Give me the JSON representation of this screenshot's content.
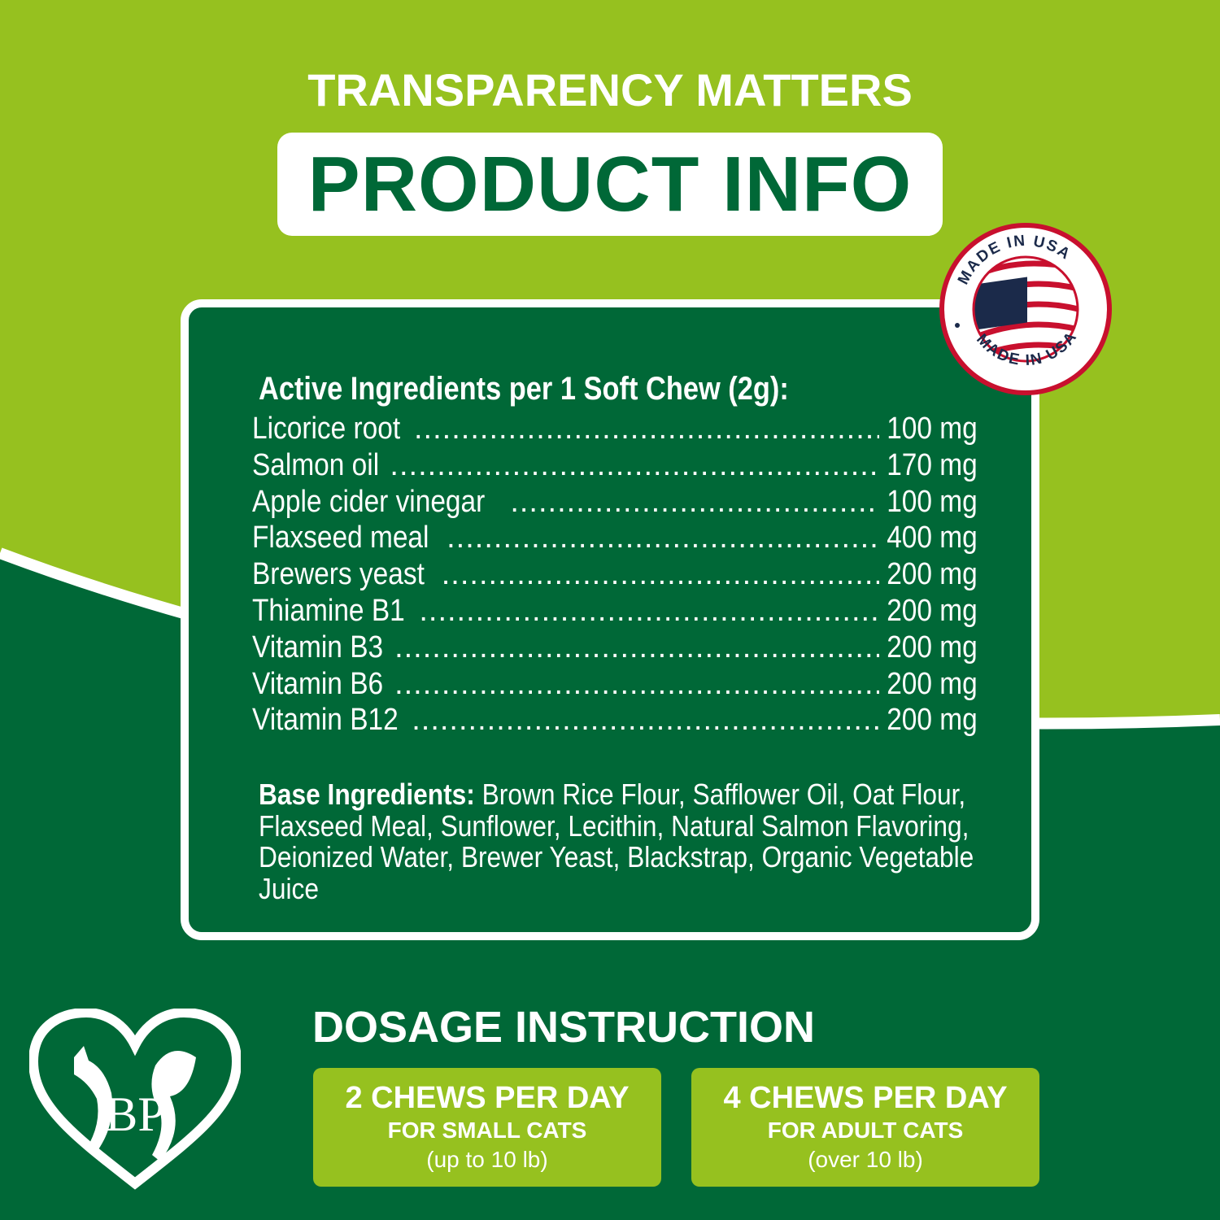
{
  "header": {
    "kicker": "TRANSPARENCY MATTERS",
    "title": "PRODUCT INFO"
  },
  "badge": {
    "text": "MADE IN USA"
  },
  "ingredients": {
    "heading": "Active Ingredients per 1 Soft Chew (2g):",
    "items": [
      {
        "name": "Licorice root",
        "amount": "100 mg"
      },
      {
        "name": "Salmon oil",
        "amount": "170 mg"
      },
      {
        "name": "Apple cider vinegar",
        "amount": "100 mg"
      },
      {
        "name": "Flaxseed meal",
        "amount": "400 mg"
      },
      {
        "name": "Brewers yeast",
        "amount": "200 mg"
      },
      {
        "name": "Thiamine B1",
        "amount": "200 mg"
      },
      {
        "name": "Vitamin B3",
        "amount": "200 mg"
      },
      {
        "name": "Vitamin B6",
        "amount": "200 mg"
      },
      {
        "name": "Vitamin B12",
        "amount": "200 mg"
      }
    ],
    "base_label": "Base Ingredients:",
    "base_text": "Brown Rice Flour, Safflower Oil, Oat Flour, Flaxseed Meal, Sunflower, Lecithin, Natural Salmon Flavoring, Deionized Water, Brewer Yeast, Blackstrap, Organic Vegetable Juice"
  },
  "dosage": {
    "heading": "DOSAGE INSTRUCTION",
    "boxes": [
      {
        "amount": "2 CHEWS PER DAY",
        "target": "FOR SMALL CATS",
        "weight": "(up to 10 lb)"
      },
      {
        "amount": "4 CHEWS PER DAY",
        "target": "FOR ADULT CATS",
        "weight": "(over 10 lb)"
      }
    ]
  },
  "logo": {
    "letters": "BP"
  },
  "colors": {
    "light_green": "#96c11f",
    "dark_green": "#006837",
    "white": "#ffffff",
    "badge_red": "#c8102e",
    "badge_navy": "#1b2a4a"
  }
}
